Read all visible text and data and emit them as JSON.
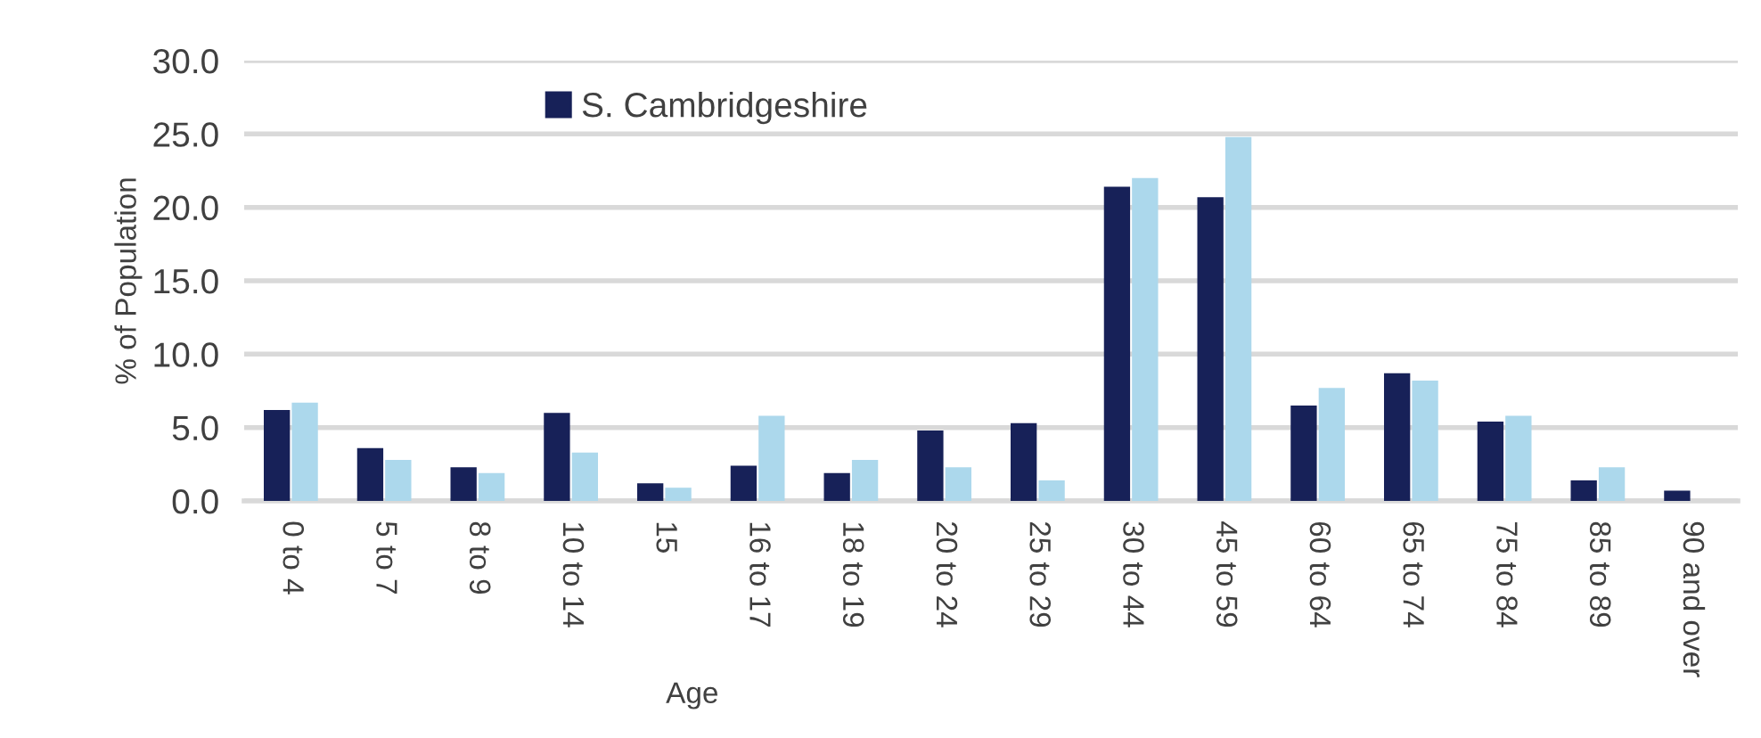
{
  "chart_data": {
    "type": "bar",
    "xlabel": "Age",
    "ylabel": "% of Population",
    "categories": [
      "0 to 4",
      "5 to 7",
      "8 to 9",
      "10 to 14",
      "15",
      "16 to 17",
      "18 to 19",
      "20 to 24",
      "25 to 29",
      "30 to 44",
      "45 to 59",
      "60 to 64",
      "65 to 74",
      "75 to 84",
      "85 to 89",
      "90 and over"
    ],
    "series": [
      {
        "name": "S. Cambridgeshire",
        "color": "#172158",
        "values": [
          6.2,
          3.6,
          2.3,
          6.0,
          1.2,
          2.4,
          1.9,
          4.8,
          5.3,
          21.4,
          20.7,
          6.5,
          8.7,
          5.4,
          1.4,
          0.7
        ]
      },
      {
        "color": "#acd8ec",
        "values": [
          6.7,
          2.8,
          1.9,
          3.3,
          0.9,
          5.8,
          2.8,
          2.3,
          1.4,
          22.0,
          24.8,
          7.7,
          8.2,
          5.8,
          2.3,
          0
        ]
      }
    ],
    "ylim": [
      0,
      30
    ],
    "yticks": [
      {
        "value": 0,
        "label": "0.0"
      },
      {
        "value": 5,
        "label": "5.0"
      },
      {
        "value": 10,
        "label": "10.0"
      },
      {
        "value": 15,
        "label": "15.0"
      },
      {
        "value": 20,
        "label": "20.0"
      },
      {
        "value": 25,
        "label": "25.0"
      },
      {
        "value": 30,
        "label": "30.0"
      }
    ],
    "grid": "y",
    "legend": "top"
  }
}
